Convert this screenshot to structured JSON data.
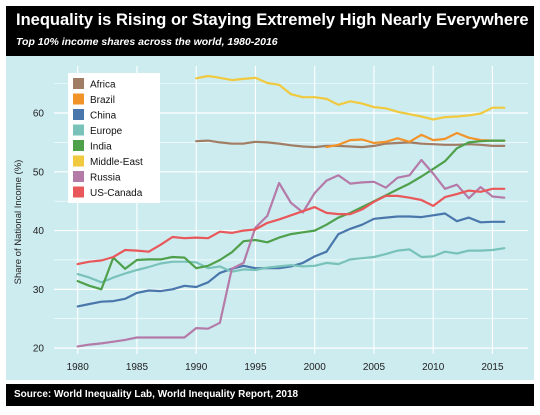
{
  "header": {
    "title": "Inequality is Rising or Staying Extremely High Nearly Everywhere",
    "subtitle": "Top 10% income shares across the world, 1980-2016"
  },
  "footer": {
    "source": "Source: World Inequality Lab, World Inequality Report, 2018"
  },
  "colors": {
    "header_bg": "#000000",
    "plot_bg": "#cdecf0",
    "grid": "#ffffff"
  },
  "chart_data": {
    "type": "line",
    "title": "Inequality is Rising or Staying Extremely High Nearly Everywhere",
    "subtitle": "Top 10% income shares across the world, 1980-2016",
    "xlabel": "",
    "ylabel": "Share of National Income (%)",
    "xlim": [
      1978,
      2018
    ],
    "ylim": [
      19,
      68
    ],
    "xticks": [
      1980,
      1985,
      1990,
      1995,
      2000,
      2005,
      2010,
      2015
    ],
    "yticks": [
      20,
      30,
      40,
      50,
      60
    ],
    "grid": true,
    "legend_position": "top-left",
    "series": [
      {
        "name": "Africa",
        "color": "#a07e66",
        "points": [
          [
            1990,
            55.2
          ],
          [
            1991,
            55.3
          ],
          [
            1992,
            55.0
          ],
          [
            1993,
            54.8
          ],
          [
            1994,
            54.8
          ],
          [
            1995,
            55.1
          ],
          [
            1996,
            55.0
          ],
          [
            1997,
            54.8
          ],
          [
            1998,
            54.5
          ],
          [
            1999,
            54.3
          ],
          [
            2000,
            54.2
          ],
          [
            2001,
            54.4
          ],
          [
            2002,
            54.4
          ],
          [
            2003,
            54.3
          ],
          [
            2004,
            54.2
          ],
          [
            2005,
            54.4
          ],
          [
            2006,
            54.8
          ],
          [
            2007,
            54.9
          ],
          [
            2008,
            55.0
          ],
          [
            2009,
            54.8
          ],
          [
            2010,
            54.7
          ],
          [
            2011,
            54.6
          ],
          [
            2012,
            54.6
          ],
          [
            2013,
            54.7
          ],
          [
            2014,
            54.6
          ],
          [
            2015,
            54.4
          ],
          [
            2016,
            54.4
          ]
        ]
      },
      {
        "name": "Brazil",
        "color": "#f2932a",
        "points": [
          [
            2001,
            54.2
          ],
          [
            2002,
            54.6
          ],
          [
            2003,
            55.4
          ],
          [
            2004,
            55.5
          ],
          [
            2005,
            54.9
          ],
          [
            2006,
            55.1
          ],
          [
            2007,
            55.7
          ],
          [
            2008,
            55.1
          ],
          [
            2009,
            56.3
          ],
          [
            2010,
            55.4
          ],
          [
            2011,
            55.6
          ],
          [
            2012,
            56.6
          ],
          [
            2013,
            55.8
          ],
          [
            2014,
            55.4
          ],
          [
            2015,
            55.3
          ],
          [
            2016,
            55.3
          ]
        ]
      },
      {
        "name": "China",
        "color": "#4a77ab",
        "points": [
          [
            1980,
            27.1
          ],
          [
            1981,
            27.5
          ],
          [
            1982,
            27.9
          ],
          [
            1983,
            28.0
          ],
          [
            1984,
            28.4
          ],
          [
            1985,
            29.4
          ],
          [
            1986,
            29.8
          ],
          [
            1987,
            29.7
          ],
          [
            1988,
            30.0
          ],
          [
            1989,
            30.6
          ],
          [
            1990,
            30.4
          ],
          [
            1991,
            31.2
          ],
          [
            1992,
            32.8
          ],
          [
            1993,
            33.5
          ],
          [
            1994,
            34.0
          ],
          [
            1995,
            33.6
          ],
          [
            1996,
            33.6
          ],
          [
            1997,
            33.6
          ],
          [
            1998,
            33.9
          ],
          [
            1999,
            34.5
          ],
          [
            2000,
            35.6
          ],
          [
            2001,
            36.4
          ],
          [
            2002,
            39.4
          ],
          [
            2003,
            40.3
          ],
          [
            2004,
            41.0
          ],
          [
            2005,
            42.0
          ],
          [
            2006,
            42.2
          ],
          [
            2007,
            42.4
          ],
          [
            2008,
            42.4
          ],
          [
            2009,
            42.3
          ],
          [
            2010,
            42.6
          ],
          [
            2011,
            42.9
          ],
          [
            2012,
            41.6
          ],
          [
            2013,
            42.2
          ],
          [
            2014,
            41.4
          ],
          [
            2015,
            41.5
          ],
          [
            2016,
            41.5
          ]
        ]
      },
      {
        "name": "Europe",
        "color": "#79c2ba",
        "points": [
          [
            1980,
            32.6
          ],
          [
            1981,
            32.0
          ],
          [
            1982,
            31.2
          ],
          [
            1983,
            32.0
          ],
          [
            1984,
            32.7
          ],
          [
            1985,
            33.3
          ],
          [
            1986,
            33.8
          ],
          [
            1987,
            34.4
          ],
          [
            1988,
            34.7
          ],
          [
            1989,
            34.7
          ],
          [
            1990,
            34.6
          ],
          [
            1991,
            33.6
          ],
          [
            1992,
            33.9
          ],
          [
            1993,
            33.0
          ],
          [
            1994,
            33.4
          ],
          [
            1995,
            33.3
          ],
          [
            1996,
            33.7
          ],
          [
            1997,
            33.9
          ],
          [
            1998,
            34.1
          ],
          [
            1999,
            33.9
          ],
          [
            2000,
            34.0
          ],
          [
            2001,
            34.5
          ],
          [
            2002,
            34.3
          ],
          [
            2003,
            35.1
          ],
          [
            2004,
            35.3
          ],
          [
            2005,
            35.5
          ],
          [
            2006,
            36.0
          ],
          [
            2007,
            36.6
          ],
          [
            2008,
            36.8
          ],
          [
            2009,
            35.5
          ],
          [
            2010,
            35.6
          ],
          [
            2011,
            36.4
          ],
          [
            2012,
            36.1
          ],
          [
            2013,
            36.6
          ],
          [
            2014,
            36.6
          ],
          [
            2015,
            36.7
          ],
          [
            2016,
            37.0
          ]
        ]
      },
      {
        "name": "India",
        "color": "#4fa04b",
        "points": [
          [
            1980,
            31.4
          ],
          [
            1981,
            30.6
          ],
          [
            1982,
            30.0
          ],
          [
            1983,
            35.4
          ],
          [
            1984,
            33.5
          ],
          [
            1985,
            35.0
          ],
          [
            1986,
            35.1
          ],
          [
            1987,
            35.1
          ],
          [
            1988,
            35.5
          ],
          [
            1989,
            35.4
          ],
          [
            1990,
            33.6
          ],
          [
            1991,
            34.0
          ],
          [
            1992,
            35.0
          ],
          [
            1993,
            36.3
          ],
          [
            1994,
            38.2
          ],
          [
            1995,
            38.4
          ],
          [
            1996,
            38.0
          ],
          [
            1997,
            38.8
          ],
          [
            1998,
            39.4
          ],
          [
            1999,
            39.7
          ],
          [
            2000,
            40.0
          ],
          [
            2001,
            41.0
          ],
          [
            2002,
            42.2
          ],
          [
            2003,
            43.0
          ],
          [
            2004,
            44.0
          ],
          [
            2005,
            45.0
          ],
          [
            2006,
            46.0
          ],
          [
            2007,
            47.0
          ],
          [
            2008,
            48.0
          ],
          [
            2009,
            49.2
          ],
          [
            2010,
            50.5
          ],
          [
            2011,
            51.8
          ],
          [
            2012,
            54.0
          ],
          [
            2013,
            55.0
          ],
          [
            2014,
            55.2
          ],
          [
            2015,
            55.3
          ],
          [
            2016,
            55.3
          ]
        ]
      },
      {
        "name": "Middle-East",
        "color": "#f0c93f",
        "points": [
          [
            1990,
            65.9
          ],
          [
            1991,
            66.3
          ],
          [
            1992,
            66.0
          ],
          [
            1993,
            65.6
          ],
          [
            1994,
            65.8
          ],
          [
            1995,
            66.0
          ],
          [
            1996,
            65.1
          ],
          [
            1997,
            64.8
          ],
          [
            1998,
            63.2
          ],
          [
            1999,
            62.7
          ],
          [
            2000,
            62.7
          ],
          [
            2001,
            62.4
          ],
          [
            2002,
            61.4
          ],
          [
            2003,
            62.0
          ],
          [
            2004,
            61.6
          ],
          [
            2005,
            61.0
          ],
          [
            2006,
            60.8
          ],
          [
            2007,
            60.2
          ],
          [
            2008,
            59.8
          ],
          [
            2009,
            59.4
          ],
          [
            2010,
            58.9
          ],
          [
            2011,
            59.3
          ],
          [
            2012,
            59.4
          ],
          [
            2013,
            59.6
          ],
          [
            2014,
            59.9
          ],
          [
            2015,
            60.9
          ],
          [
            2016,
            60.9
          ]
        ]
      },
      {
        "name": "Russia",
        "color": "#b47aa8",
        "points": [
          [
            1980,
            20.3
          ],
          [
            1981,
            20.6
          ],
          [
            1982,
            20.8
          ],
          [
            1983,
            21.1
          ],
          [
            1984,
            21.4
          ],
          [
            1985,
            21.8
          ],
          [
            1986,
            21.8
          ],
          [
            1987,
            21.8
          ],
          [
            1988,
            21.8
          ],
          [
            1989,
            21.8
          ],
          [
            1990,
            23.4
          ],
          [
            1991,
            23.3
          ],
          [
            1992,
            24.3
          ],
          [
            1993,
            33.5
          ],
          [
            1994,
            34.5
          ],
          [
            1995,
            40.5
          ],
          [
            1996,
            42.5
          ],
          [
            1997,
            48.1
          ],
          [
            1998,
            44.7
          ],
          [
            1999,
            43.1
          ],
          [
            2000,
            46.4
          ],
          [
            2001,
            48.5
          ],
          [
            2002,
            49.4
          ],
          [
            2003,
            48.0
          ],
          [
            2004,
            48.2
          ],
          [
            2005,
            48.3
          ],
          [
            2006,
            47.3
          ],
          [
            2007,
            49.0
          ],
          [
            2008,
            49.4
          ],
          [
            2009,
            52.0
          ],
          [
            2010,
            49.7
          ],
          [
            2011,
            47.1
          ],
          [
            2012,
            47.8
          ],
          [
            2013,
            45.5
          ],
          [
            2014,
            47.4
          ],
          [
            2015,
            45.8
          ],
          [
            2016,
            45.6
          ]
        ]
      },
      {
        "name": "US-Canada",
        "color": "#e8585a",
        "points": [
          [
            1980,
            34.3
          ],
          [
            1981,
            34.7
          ],
          [
            1982,
            34.9
          ],
          [
            1983,
            35.5
          ],
          [
            1984,
            36.7
          ],
          [
            1985,
            36.6
          ],
          [
            1986,
            36.4
          ],
          [
            1987,
            37.6
          ],
          [
            1988,
            38.9
          ],
          [
            1989,
            38.7
          ],
          [
            1990,
            38.8
          ],
          [
            1991,
            38.7
          ],
          [
            1992,
            39.8
          ],
          [
            1993,
            39.6
          ],
          [
            1994,
            40.0
          ],
          [
            1995,
            40.2
          ],
          [
            1996,
            41.3
          ],
          [
            1997,
            41.9
          ],
          [
            1998,
            42.6
          ],
          [
            1999,
            43.3
          ],
          [
            2000,
            44.0
          ],
          [
            2001,
            43.0
          ],
          [
            2002,
            42.8
          ],
          [
            2003,
            42.8
          ],
          [
            2004,
            43.6
          ],
          [
            2005,
            44.9
          ],
          [
            2006,
            45.9
          ],
          [
            2007,
            45.9
          ],
          [
            2008,
            45.6
          ],
          [
            2009,
            45.2
          ],
          [
            2010,
            44.2
          ],
          [
            2011,
            45.7
          ],
          [
            2012,
            46.2
          ],
          [
            2013,
            46.8
          ],
          [
            2014,
            46.6
          ],
          [
            2015,
            47.1
          ],
          [
            2016,
            47.1
          ]
        ]
      }
    ]
  }
}
